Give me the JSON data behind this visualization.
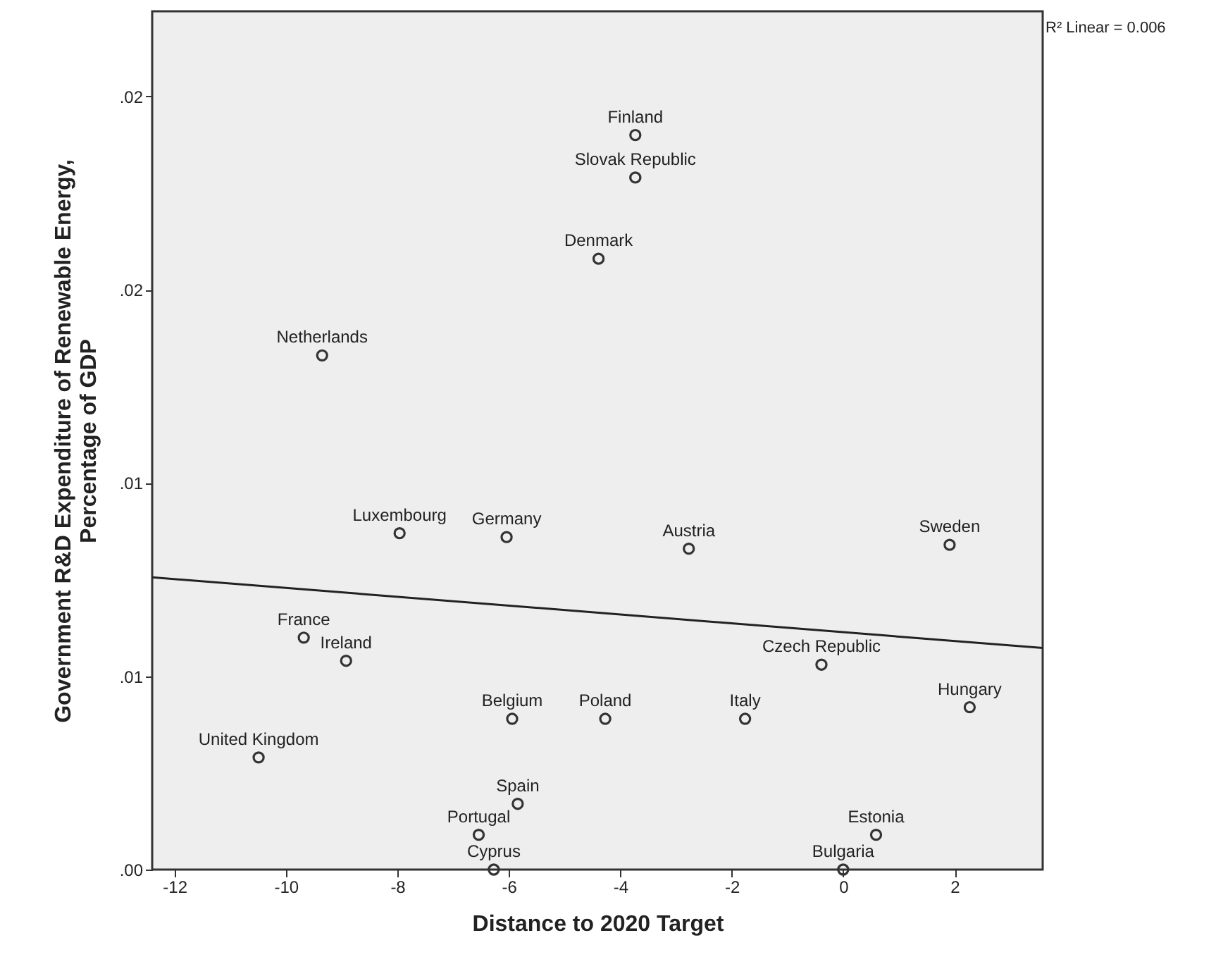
{
  "chart_data": {
    "type": "scatter",
    "xlabel": "Distance to 2020 Target",
    "ylabel": "Government R&D Expenditure of Renewable Energy,\nPercentage of GDP",
    "xlim": [
      -12.4,
      3.58
    ],
    "xticks": [
      -12,
      -10,
      -8,
      -6,
      -4,
      -2,
      0,
      2
    ],
    "ylim": [
      0,
      0.0222
    ],
    "yticks": [
      {
        "value": 0,
        "label": ".00"
      },
      {
        "value": 0.005,
        "label": ".01"
      },
      {
        "value": 0.01,
        "label": ".01"
      },
      {
        "value": 0.015,
        "label": ".02"
      },
      {
        "value": 0.02,
        "label": ".02"
      }
    ],
    "grid": false,
    "series": [
      {
        "marker": "circle",
        "color": "#333333",
        "x": [
          -3.73,
          -3.73,
          -4.39,
          -9.35,
          -7.96,
          -6.04,
          -2.77,
          1.91,
          -9.68,
          -8.92,
          -0.39,
          2.27,
          -5.94,
          -4.27,
          -1.76,
          -10.49,
          -5.84,
          -6.54,
          0.59,
          -6.27,
          0.0
        ],
        "values": [
          0.019,
          0.0179,
          0.0158,
          0.0133,
          0.0087,
          0.0086,
          0.0083,
          0.0084,
          0.006,
          0.0054,
          0.0053,
          0.0042,
          0.0039,
          0.0039,
          0.0039,
          0.0029,
          0.0017,
          0.0009,
          0.0009,
          0.0,
          0.0
        ]
      },
      {
        "type": "line",
        "color": "#222222",
        "x": [
          -12.4,
          3.58
        ],
        "values": [
          0.00756,
          0.00573
        ]
      }
    ],
    "annotations": [
      {
        "text": "Finland",
        "x": -3.73,
        "y": 0.019
      },
      {
        "text": "Slovak Republic",
        "x": -3.73,
        "y": 0.0179
      },
      {
        "text": "Denmark",
        "x": -4.39,
        "y": 0.0158
      },
      {
        "text": "Netherlands",
        "x": -9.35,
        "y": 0.0133
      },
      {
        "text": "Luxembourg",
        "x": -7.96,
        "y": 0.0087
      },
      {
        "text": "Germany",
        "x": -6.04,
        "y": 0.0086
      },
      {
        "text": "Austria",
        "x": -2.77,
        "y": 0.0083
      },
      {
        "text": "Sweden",
        "x": 1.91,
        "y": 0.0084
      },
      {
        "text": "France",
        "x": -9.68,
        "y": 0.006
      },
      {
        "text": "Ireland",
        "x": -8.92,
        "y": 0.0054
      },
      {
        "text": "Czech Republic",
        "x": -0.39,
        "y": 0.0053
      },
      {
        "text": "Hungary",
        "x": 2.27,
        "y": 0.0042
      },
      {
        "text": "Belgium",
        "x": -5.94,
        "y": 0.0039
      },
      {
        "text": "Poland",
        "x": -4.27,
        "y": 0.0039
      },
      {
        "text": "Italy",
        "x": -1.76,
        "y": 0.0039
      },
      {
        "text": "United Kingdom",
        "x": -10.49,
        "y": 0.0029
      },
      {
        "text": "Spain",
        "x": -5.84,
        "y": 0.0017
      },
      {
        "text": "Portugal",
        "x": -6.54,
        "y": 0.0009
      },
      {
        "text": "Estonia",
        "x": 0.59,
        "y": 0.0009
      },
      {
        "text": "Cyprus",
        "x": -6.27,
        "y": 0.0
      },
      {
        "text": "Bulgaria",
        "x": 0.0,
        "y": 0.0
      },
      "R² Linear = 0.006"
    ]
  }
}
